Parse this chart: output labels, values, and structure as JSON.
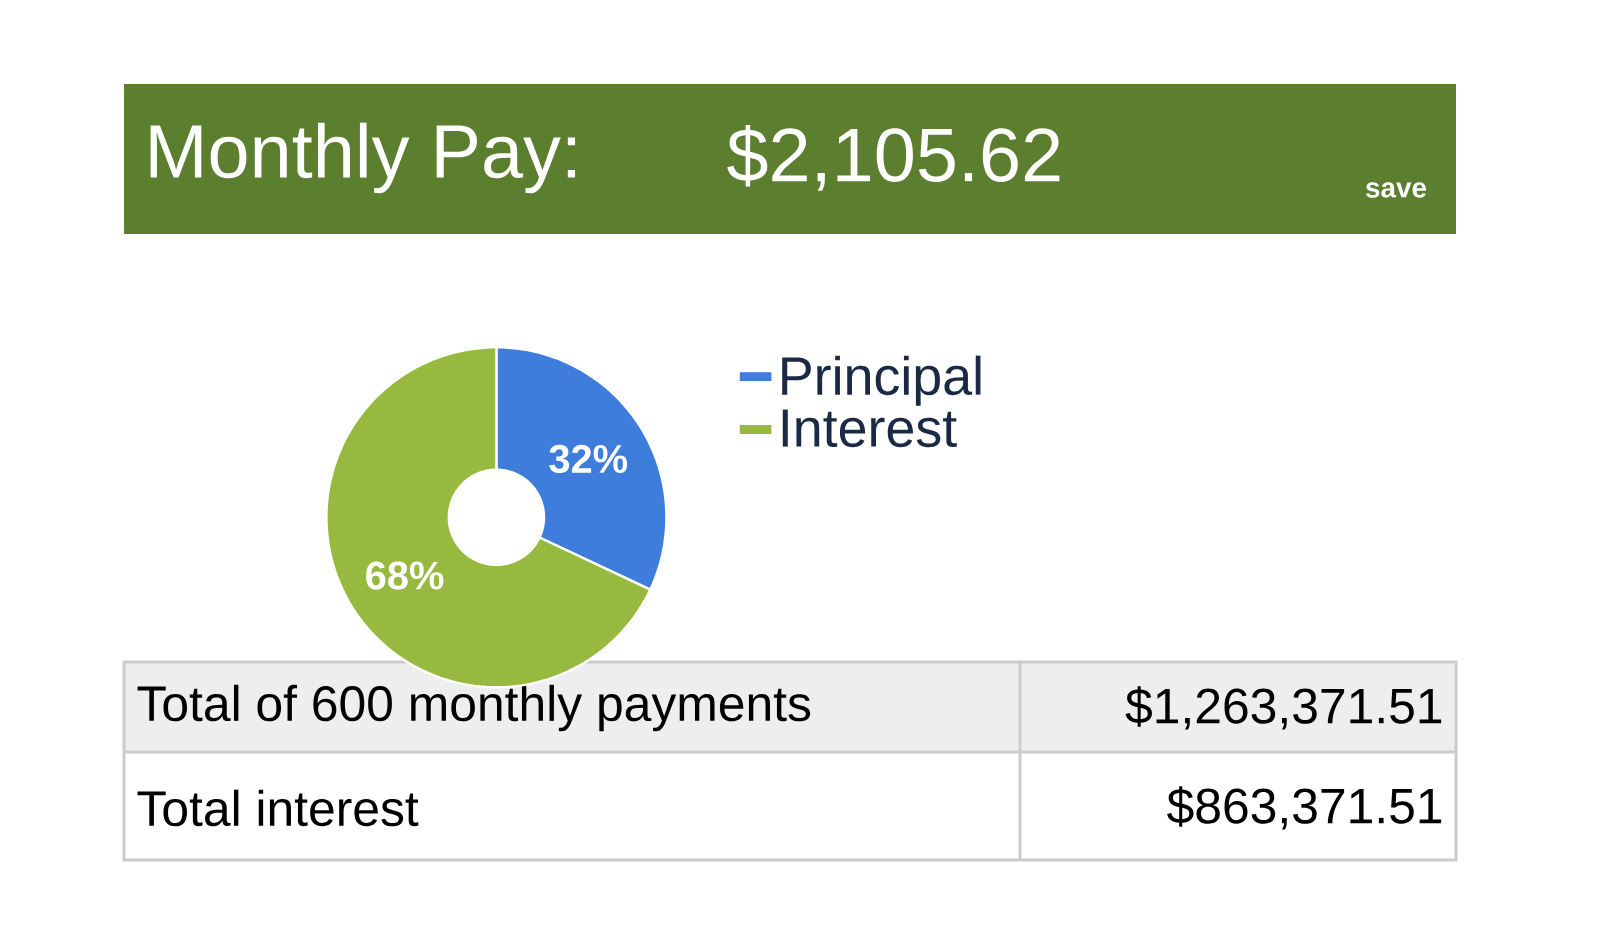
{
  "chart_data": {
    "type": "donut",
    "title": "Monthly Pay:",
    "subtitle": "$2,105.62",
    "categories": [
      "Principal",
      "Interest"
    ],
    "values": [
      32,
      68
    ],
    "colors": [
      "#3e7ddb",
      "#98b93f"
    ],
    "value_labels": [
      "32%",
      "68%"
    ],
    "legend": "right",
    "annotations": [
      "save",
      "Total of 600 monthly payments",
      "$1,263,371.51",
      "Total interest",
      "$863,371.51"
    ]
  }
}
